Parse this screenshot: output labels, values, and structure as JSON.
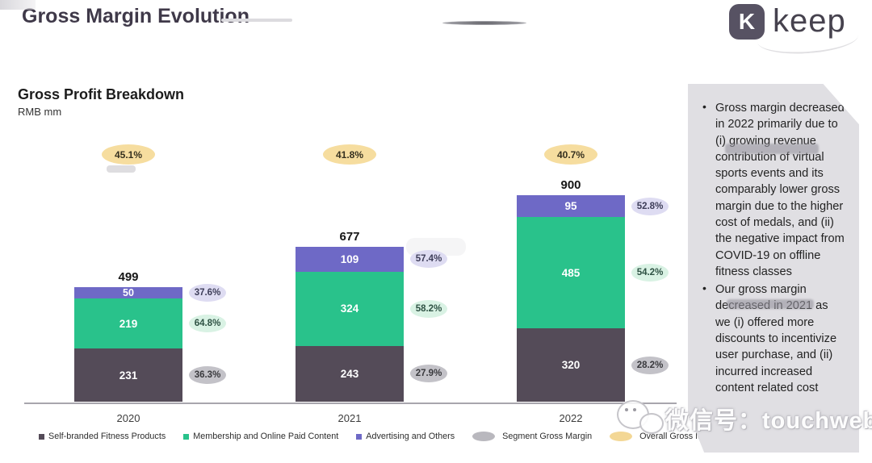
{
  "header": {
    "title": "Gross Margin Evolution",
    "logo": {
      "badge_letter": "K",
      "brand": "keep"
    }
  },
  "section": {
    "title": "Gross Profit Breakdown",
    "unit": "RMB mm"
  },
  "chart_data": {
    "type": "bar",
    "stacked": true,
    "title": "Gross Profit Breakdown",
    "ylabel": "RMB mm",
    "categories": [
      "2020",
      "2021",
      "2022"
    ],
    "series": [
      {
        "name": "Self-branded Fitness Products",
        "color": "#544b58",
        "values": [
          231,
          243,
          320
        ],
        "segment_gross_margin": [
          "36.3%",
          "27.9%",
          "28.2%"
        ]
      },
      {
        "name": "Membership and Online Paid Content",
        "color": "#29c28b",
        "values": [
          219,
          324,
          485
        ],
        "segment_gross_margin": [
          "64.8%",
          "58.2%",
          "54.2%"
        ]
      },
      {
        "name": "Advertising and Others",
        "color": "#6e69c6",
        "values": [
          50,
          109,
          95
        ],
        "segment_gross_margin": [
          "37.6%",
          "57.4%",
          "52.8%"
        ]
      }
    ],
    "totals": [
      499,
      677,
      900
    ],
    "overall_gross_margin": [
      "45.1%",
      "41.8%",
      "40.7%"
    ],
    "legend_position": "bottom",
    "grid": false
  },
  "legend": {
    "items": [
      {
        "label": "Self-branded Fitness Products",
        "marker": "square",
        "color": "#544b58"
      },
      {
        "label": "Membership and Online Paid Content",
        "marker": "square",
        "color": "#29c28b"
      },
      {
        "label": "Advertising and Others",
        "marker": "square",
        "color": "#6e69c6"
      },
      {
        "label": "Segment Gross Margin",
        "marker": "ellipse",
        "color": "#b9b8be"
      },
      {
        "label": "Overall Gross Margin",
        "marker": "ellipse",
        "color": "#f3d795"
      }
    ]
  },
  "notes": {
    "bullets": [
      "Gross margin decreased in 2022 primarily due to (i) growing revenue contribution of virtual sports events and its comparably lower gross margin due to the higher cost of medals, and (ii) the negative impact from COVID-19 on offline fitness classes",
      "Our gross margin decreased in 2021 as we (i) offered more discounts to incentivize user purchase, and (ii) incurred increased content related cost"
    ]
  },
  "watermark": {
    "text": "微信号：touchweb"
  },
  "colors": {
    "overall_bubble_bg": "#f6dd9f",
    "overall_bubble_text": "#35301f",
    "segment_bubbles": [
      {
        "bg": "#c3c2c8",
        "text": "#39393d"
      },
      {
        "bg": "#d9f2e4",
        "text": "#2f5244"
      },
      {
        "bg": "#dedcf2",
        "text": "#3e3e59"
      }
    ]
  }
}
